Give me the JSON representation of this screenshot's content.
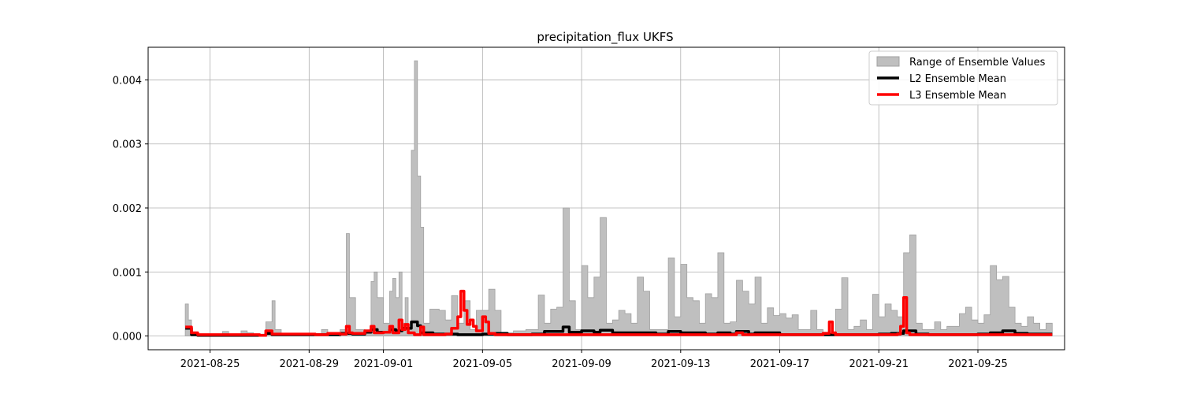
{
  "chart_data": {
    "type": "area",
    "title": "precipitation_flux UKFS",
    "xlabel": "",
    "ylabel": "",
    "x_range": [
      "2021-08-22 12:00",
      "2021-09-28 12:00"
    ],
    "ylim": [
      -0.000215,
      0.00451
    ],
    "grid": true,
    "legend_position": "top-right",
    "x_ticks": [
      "2021-08-25",
      "2021-08-29",
      "2021-09-01",
      "2021-09-05",
      "2021-09-09",
      "2021-09-13",
      "2021-09-17",
      "2021-09-21",
      "2021-09-25"
    ],
    "y_ticks": [
      "0.000",
      "0.001",
      "0.002",
      "0.003",
      "0.004"
    ],
    "y_tick_values": [
      0,
      0.001,
      0.002,
      0.003,
      0.004
    ],
    "colors": {
      "range_fill": "#bfbfbf",
      "range_edge": "#a0a0a0",
      "l2": "#000000",
      "l3": "#ff0000",
      "grid": "#b0b0b0"
    },
    "series": [
      {
        "name": "Range of Ensemble Values",
        "kind": "range",
        "points": [
          [
            "2021-08-24 00:00",
            0.0005
          ],
          [
            "2021-08-24 03:00",
            0.00025
          ],
          [
            "2021-08-24 06:00",
            5e-05
          ],
          [
            "2021-08-24 12:00",
            2e-05
          ],
          [
            "2021-08-24 18:00",
            1e-05
          ],
          [
            "2021-08-25 00:00",
            2e-05
          ],
          [
            "2021-08-25 12:00",
            7e-05
          ],
          [
            "2021-08-25 18:00",
            2e-05
          ],
          [
            "2021-08-26 06:00",
            8e-05
          ],
          [
            "2021-08-26 12:00",
            5e-05
          ],
          [
            "2021-08-26 18:00",
            3e-05
          ],
          [
            "2021-08-27 06:00",
            0.00022
          ],
          [
            "2021-08-27 12:00",
            0.00055
          ],
          [
            "2021-08-27 15:00",
            0.0001
          ],
          [
            "2021-08-27 21:00",
            4e-05
          ],
          [
            "2021-08-28 12:00",
            3e-05
          ],
          [
            "2021-08-29 00:00",
            3e-05
          ],
          [
            "2021-08-29 12:00",
            0.0001
          ],
          [
            "2021-08-29 18:00",
            4e-05
          ],
          [
            "2021-08-30 06:00",
            0.0001
          ],
          [
            "2021-08-30 12:00",
            0.0016
          ],
          [
            "2021-08-30 15:00",
            0.0006
          ],
          [
            "2021-08-30 21:00",
            0.0001
          ],
          [
            "2021-08-31 06:00",
            5e-05
          ],
          [
            "2021-08-31 12:00",
            0.00085
          ],
          [
            "2021-08-31 15:00",
            0.001
          ],
          [
            "2021-08-31 18:00",
            0.0006
          ],
          [
            "2021-09-01 00:00",
            0.0002
          ],
          [
            "2021-09-01 06:00",
            0.0007
          ],
          [
            "2021-09-01 09:00",
            0.0009
          ],
          [
            "2021-09-01 12:00",
            0.0006
          ],
          [
            "2021-09-01 15:00",
            0.001
          ],
          [
            "2021-09-01 18:00",
            0.0002
          ],
          [
            "2021-09-01 21:00",
            0.0006
          ],
          [
            "2021-09-02 00:00",
            0.0001
          ],
          [
            "2021-09-02 03:00",
            0.0029
          ],
          [
            "2021-09-02 06:00",
            0.0043
          ],
          [
            "2021-09-02 09:00",
            0.0025
          ],
          [
            "2021-09-02 12:00",
            0.0017
          ],
          [
            "2021-09-02 15:00",
            0.0002
          ],
          [
            "2021-09-02 21:00",
            0.00042
          ],
          [
            "2021-09-03 06:00",
            0.0004
          ],
          [
            "2021-09-03 12:00",
            0.00025
          ],
          [
            "2021-09-03 18:00",
            0.00063
          ],
          [
            "2021-09-04 00:00",
            0.0002
          ],
          [
            "2021-09-04 06:00",
            0.00055
          ],
          [
            "2021-09-04 12:00",
            0.0001
          ],
          [
            "2021-09-04 18:00",
            0.0004
          ],
          [
            "2021-09-05 06:00",
            0.00073
          ],
          [
            "2021-09-05 12:00",
            0.0004
          ],
          [
            "2021-09-05 18:00",
            5e-05
          ],
          [
            "2021-09-06 06:00",
            8e-05
          ],
          [
            "2021-09-06 18:00",
            0.0001
          ],
          [
            "2021-09-07 06:00",
            0.00064
          ],
          [
            "2021-09-07 12:00",
            0.0002
          ],
          [
            "2021-09-07 18:00",
            0.00042
          ],
          [
            "2021-09-08 00:00",
            0.00045
          ],
          [
            "2021-09-08 06:00",
            0.002
          ],
          [
            "2021-09-08 12:00",
            0.00055
          ],
          [
            "2021-09-08 18:00",
            0.0001
          ],
          [
            "2021-09-09 00:00",
            0.0011
          ],
          [
            "2021-09-09 06:00",
            0.0006
          ],
          [
            "2021-09-09 12:00",
            0.00092
          ],
          [
            "2021-09-09 18:00",
            0.00185
          ],
          [
            "2021-09-10 00:00",
            0.0002
          ],
          [
            "2021-09-10 06:00",
            0.00025
          ],
          [
            "2021-09-10 12:00",
            0.0004
          ],
          [
            "2021-09-10 18:00",
            0.00035
          ],
          [
            "2021-09-11 00:00",
            0.0002
          ],
          [
            "2021-09-11 06:00",
            0.00092
          ],
          [
            "2021-09-11 12:00",
            0.0007
          ],
          [
            "2021-09-11 18:00",
            0.0001
          ],
          [
            "2021-09-12 06:00",
            0.0001
          ],
          [
            "2021-09-12 12:00",
            0.00122
          ],
          [
            "2021-09-12 18:00",
            0.0003
          ],
          [
            "2021-09-13 00:00",
            0.00112
          ],
          [
            "2021-09-13 06:00",
            0.0006
          ],
          [
            "2021-09-13 12:00",
            0.00055
          ],
          [
            "2021-09-13 18:00",
            0.0002
          ],
          [
            "2021-09-14 00:00",
            0.00066
          ],
          [
            "2021-09-14 06:00",
            0.0006
          ],
          [
            "2021-09-14 12:00",
            0.0013
          ],
          [
            "2021-09-14 18:00",
            0.0002
          ],
          [
            "2021-09-15 00:00",
            0.00022
          ],
          [
            "2021-09-15 06:00",
            0.00087
          ],
          [
            "2021-09-15 12:00",
            0.0007
          ],
          [
            "2021-09-15 18:00",
            0.0005
          ],
          [
            "2021-09-16 00:00",
            0.00092
          ],
          [
            "2021-09-16 06:00",
            0.0002
          ],
          [
            "2021-09-16 12:00",
            0.00044
          ],
          [
            "2021-09-16 18:00",
            0.00032
          ],
          [
            "2021-09-17 00:00",
            0.00035
          ],
          [
            "2021-09-17 06:00",
            0.00028
          ],
          [
            "2021-09-17 12:00",
            0.00033
          ],
          [
            "2021-09-17 18:00",
            0.0001
          ],
          [
            "2021-09-18 06:00",
            0.0004
          ],
          [
            "2021-09-18 12:00",
            0.0001
          ],
          [
            "2021-09-18 18:00",
            6e-05
          ],
          [
            "2021-09-19 06:00",
            0.00042
          ],
          [
            "2021-09-19 12:00",
            0.00091
          ],
          [
            "2021-09-19 18:00",
            0.0001
          ],
          [
            "2021-09-20 00:00",
            0.00015
          ],
          [
            "2021-09-20 06:00",
            0.00025
          ],
          [
            "2021-09-20 12:00",
            0.0001
          ],
          [
            "2021-09-20 18:00",
            0.00065
          ],
          [
            "2021-09-21 00:00",
            0.0003
          ],
          [
            "2021-09-21 06:00",
            0.0005
          ],
          [
            "2021-09-21 12:00",
            0.0004
          ],
          [
            "2021-09-21 18:00",
            0.0003
          ],
          [
            "2021-09-22 00:00",
            0.0013
          ],
          [
            "2021-09-22 06:00",
            0.00158
          ],
          [
            "2021-09-22 12:00",
            0.0002
          ],
          [
            "2021-09-22 18:00",
            0.0001
          ],
          [
            "2021-09-23 06:00",
            0.00022
          ],
          [
            "2021-09-23 12:00",
            0.0001
          ],
          [
            "2021-09-23 18:00",
            0.00015
          ],
          [
            "2021-09-24 06:00",
            0.00035
          ],
          [
            "2021-09-24 12:00",
            0.00045
          ],
          [
            "2021-09-24 18:00",
            0.00025
          ],
          [
            "2021-09-25 00:00",
            0.0002
          ],
          [
            "2021-09-25 06:00",
            0.00033
          ],
          [
            "2021-09-25 12:00",
            0.0011
          ],
          [
            "2021-09-25 18:00",
            0.00088
          ],
          [
            "2021-09-26 00:00",
            0.00093
          ],
          [
            "2021-09-26 06:00",
            0.00045
          ],
          [
            "2021-09-26 12:00",
            0.0002
          ],
          [
            "2021-09-26 18:00",
            0.00015
          ],
          [
            "2021-09-27 00:00",
            0.0003
          ],
          [
            "2021-09-27 06:00",
            0.0002
          ],
          [
            "2021-09-27 12:00",
            0.0001
          ],
          [
            "2021-09-27 18:00",
            0.0002
          ],
          [
            "2021-09-28 00:00",
            0.0002
          ]
        ]
      },
      {
        "name": "L2 Ensemble Mean",
        "kind": "line",
        "points": [
          [
            "2021-08-24 00:00",
            0.00012
          ],
          [
            "2021-08-24 06:00",
            2e-05
          ],
          [
            "2021-08-24 12:00",
            1e-05
          ],
          [
            "2021-08-27 00:00",
            1e-05
          ],
          [
            "2021-08-27 06:00",
            4e-05
          ],
          [
            "2021-08-27 12:00",
            2e-05
          ],
          [
            "2021-08-30 06:00",
            4e-05
          ],
          [
            "2021-08-30 18:00",
            3e-05
          ],
          [
            "2021-08-31 06:00",
            6e-05
          ],
          [
            "2021-08-31 12:00",
            0.0001
          ],
          [
            "2021-08-31 18:00",
            6e-05
          ],
          [
            "2021-09-01 06:00",
            0.0001
          ],
          [
            "2021-09-01 12:00",
            8e-05
          ],
          [
            "2021-09-01 18:00",
            0.00012
          ],
          [
            "2021-09-02 00:00",
            0.00012
          ],
          [
            "2021-09-02 03:00",
            0.00022
          ],
          [
            "2021-09-02 09:00",
            0.00016
          ],
          [
            "2021-09-02 12:00",
            5e-05
          ],
          [
            "2021-09-03 00:00",
            3e-05
          ],
          [
            "2021-09-04 00:00",
            2e-05
          ],
          [
            "2021-09-05 00:00",
            3e-05
          ],
          [
            "2021-09-05 12:00",
            4e-05
          ],
          [
            "2021-09-06 00:00",
            2e-05
          ],
          [
            "2021-09-07 00:00",
            3e-05
          ],
          [
            "2021-09-07 12:00",
            7e-05
          ],
          [
            "2021-09-08 00:00",
            7e-05
          ],
          [
            "2021-09-08 06:00",
            0.00014
          ],
          [
            "2021-09-08 12:00",
            6e-05
          ],
          [
            "2021-09-09 00:00",
            8e-05
          ],
          [
            "2021-09-09 12:00",
            6e-05
          ],
          [
            "2021-09-09 18:00",
            9e-05
          ],
          [
            "2021-09-10 06:00",
            5e-05
          ],
          [
            "2021-09-11 00:00",
            5e-05
          ],
          [
            "2021-09-12 00:00",
            3e-05
          ],
          [
            "2021-09-12 12:00",
            7e-05
          ],
          [
            "2021-09-13 00:00",
            5e-05
          ],
          [
            "2021-09-14 00:00",
            3e-05
          ],
          [
            "2021-09-14 12:00",
            5e-05
          ],
          [
            "2021-09-15 00:00",
            3e-05
          ],
          [
            "2021-09-15 06:00",
            7e-05
          ],
          [
            "2021-09-15 18:00",
            3e-05
          ],
          [
            "2021-09-16 00:00",
            5e-05
          ],
          [
            "2021-09-17 00:00",
            2e-05
          ],
          [
            "2021-09-18 00:00",
            2e-05
          ],
          [
            "2021-09-19 00:00",
            2e-05
          ],
          [
            "2021-09-20 00:00",
            2e-05
          ],
          [
            "2021-09-21 00:00",
            3e-05
          ],
          [
            "2021-09-21 12:00",
            4e-05
          ],
          [
            "2021-09-22 00:00",
            8e-05
          ],
          [
            "2021-09-22 12:00",
            3e-05
          ],
          [
            "2021-09-23 00:00",
            2e-05
          ],
          [
            "2021-09-24 00:00",
            2e-05
          ],
          [
            "2021-09-25 00:00",
            3e-05
          ],
          [
            "2021-09-25 12:00",
            5e-05
          ],
          [
            "2021-09-26 00:00",
            8e-05
          ],
          [
            "2021-09-26 12:00",
            4e-05
          ],
          [
            "2021-09-27 00:00",
            3e-05
          ],
          [
            "2021-09-28 00:00",
            3e-05
          ]
        ]
      },
      {
        "name": "L3 Ensemble Mean",
        "kind": "line",
        "points": [
          [
            "2021-08-24 00:00",
            0.00014
          ],
          [
            "2021-08-24 06:00",
            5e-05
          ],
          [
            "2021-08-24 12:00",
            2e-05
          ],
          [
            "2021-08-27 00:00",
            1e-05
          ],
          [
            "2021-08-27 06:00",
            8e-05
          ],
          [
            "2021-08-27 12:00",
            3e-05
          ],
          [
            "2021-08-29 06:00",
            2e-05
          ],
          [
            "2021-08-29 18:00",
            4e-05
          ],
          [
            "2021-08-30 06:00",
            3e-05
          ],
          [
            "2021-08-30 12:00",
            0.00015
          ],
          [
            "2021-08-30 15:00",
            5e-05
          ],
          [
            "2021-08-30 18:00",
            4e-05
          ],
          [
            "2021-08-31 06:00",
            8e-05
          ],
          [
            "2021-08-31 12:00",
            0.00015
          ],
          [
            "2021-08-31 15:00",
            5e-05
          ],
          [
            "2021-09-01 00:00",
            6e-05
          ],
          [
            "2021-09-01 06:00",
            0.00015
          ],
          [
            "2021-09-01 09:00",
            5e-05
          ],
          [
            "2021-09-01 15:00",
            0.00025
          ],
          [
            "2021-09-01 18:00",
            0.0001
          ],
          [
            "2021-09-01 21:00",
            0.00018
          ],
          [
            "2021-09-02 00:00",
            5e-05
          ],
          [
            "2021-09-02 06:00",
            2e-05
          ],
          [
            "2021-09-02 12:00",
            0.00014
          ],
          [
            "2021-09-02 15:00",
            2e-05
          ],
          [
            "2021-09-03 06:00",
            2e-05
          ],
          [
            "2021-09-03 12:00",
            3e-05
          ],
          [
            "2021-09-03 18:00",
            0.00012
          ],
          [
            "2021-09-04 00:00",
            0.0003
          ],
          [
            "2021-09-04 03:00",
            0.0007
          ],
          [
            "2021-09-04 06:00",
            0.0004
          ],
          [
            "2021-09-04 09:00",
            0.00018
          ],
          [
            "2021-09-04 12:00",
            0.00025
          ],
          [
            "2021-09-04 15:00",
            0.00015
          ],
          [
            "2021-09-04 18:00",
            8e-05
          ],
          [
            "2021-09-05 00:00",
            0.0003
          ],
          [
            "2021-09-05 03:00",
            0.00022
          ],
          [
            "2021-09-05 06:00",
            4e-05
          ],
          [
            "2021-09-05 12:00",
            2e-05
          ],
          [
            "2021-09-15 00:00",
            2e-05
          ],
          [
            "2021-09-15 06:00",
            5e-05
          ],
          [
            "2021-09-15 12:00",
            2e-05
          ],
          [
            "2021-09-18 18:00",
            4e-05
          ],
          [
            "2021-09-19 00:00",
            0.00022
          ],
          [
            "2021-09-19 03:00",
            5e-05
          ],
          [
            "2021-09-19 06:00",
            2e-05
          ],
          [
            "2021-09-21 18:00",
            3e-05
          ],
          [
            "2021-09-21 21:00",
            0.00015
          ],
          [
            "2021-09-22 00:00",
            0.0006
          ],
          [
            "2021-09-22 03:00",
            5e-05
          ],
          [
            "2021-09-22 06:00",
            2e-05
          ],
          [
            "2021-09-28 00:00",
            2e-05
          ]
        ]
      }
    ]
  }
}
